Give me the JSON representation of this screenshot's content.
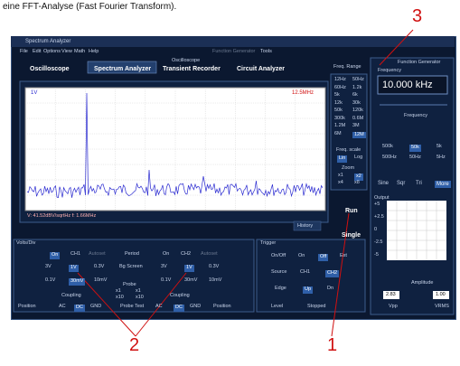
{
  "caption": "eine FFT-Analyse (Fast Fourier Transform).",
  "callouts": [
    "3",
    "2",
    "1"
  ],
  "window": {
    "title": "Spectrum Analyzer",
    "menu": [
      "File",
      "Edit",
      "Options",
      "View",
      "Math",
      "Help"
    ],
    "menu_extra": [
      "Function Generator",
      "Tools"
    ],
    "tab_group": "Oscilloscope",
    "tabs": [
      "Oscilloscope",
      "Spectrum Analyzer",
      "Transient Recorder",
      "Circuit Analyzer"
    ]
  },
  "plot": {
    "y_label": "1V",
    "x_max": "12.5MHz",
    "status": "V: 41.52dBV/sqrtHz  f: 1.66MHz",
    "history": "History"
  },
  "freq_range": {
    "title": "Freq. Range",
    "options": [
      "12Hz",
      "50Hz",
      "60Hz",
      "1.2k",
      "5k",
      "6k",
      "12k",
      "30k",
      "50k",
      "120k",
      "300k",
      "0.6M",
      "1.2M",
      "3M",
      "6M",
      "12M"
    ],
    "scale_title": "Freq. scale",
    "scale": [
      "Lin",
      "Log"
    ],
    "zoom_title": "Zoom",
    "zoom": [
      "x1",
      "x2",
      "x4",
      "x8"
    ]
  },
  "run": "Run",
  "single": "Single",
  "function_generator": {
    "title": "Function Generator",
    "frequency_title": "Frequency",
    "display": "10.000 kHz",
    "frequency_label": "Frequency",
    "steps": [
      "500k",
      "50k",
      "5k",
      "500Hz",
      "50Hz",
      "5Hz"
    ],
    "waveforms": [
      "Sine",
      "Sqr",
      "Tri",
      "More"
    ],
    "output": "Output",
    "output_scale": [
      "+5",
      "+2.5",
      "0",
      "-2.5",
      "-5"
    ],
    "amplitude": "Amplitude",
    "vpp": "2.83",
    "vrms": "1.00",
    "vpp_label": "Vpp",
    "vrms_label": "VRMS"
  },
  "volts_div": {
    "title": "Volts/Div",
    "ch1": [
      "On",
      "CH1",
      "Autoset"
    ],
    "period": "Period",
    "ch2": [
      "On",
      "CH2",
      "Autoset"
    ],
    "ch1_range": [
      "3V",
      "1V",
      "0.3V",
      "0.1V",
      "30mV",
      "10mV"
    ],
    "ch2_range": [
      "3V",
      "1V",
      "0.3V",
      "0.1V",
      "30mV",
      "10mV"
    ],
    "bg_screen": "Bg Screen",
    "probe": "Probe",
    "probe_options": [
      "x1",
      "x1",
      "x10",
      "x10"
    ],
    "coupling": [
      "Coupling",
      "Coupling"
    ],
    "bottom": [
      "Position",
      "AC",
      "DC",
      "GND",
      "Probe Test",
      "AC",
      "DC",
      "GND",
      "Position"
    ]
  },
  "trigger": {
    "title": "Trigger",
    "on_off": [
      "On/Off",
      "On",
      "Off",
      "Ext"
    ],
    "source": [
      "Source",
      "CH1",
      "CH2"
    ],
    "edge": [
      "Edge",
      "Up",
      "Dn"
    ],
    "level": "Level",
    "state": "Stopped"
  }
}
